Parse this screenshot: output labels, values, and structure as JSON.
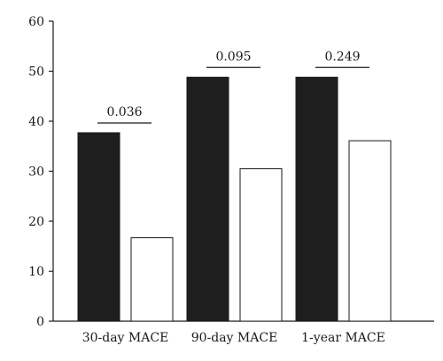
{
  "chart_data": {
    "type": "bar",
    "categories": [
      "30-day MACE",
      "90-day MACE",
      "1-year MACE"
    ],
    "series": [
      {
        "values": [
          37.7,
          48.8,
          48.8
        ],
        "color": "#1e1e1e"
      },
      {
        "values": [
          16.7,
          30.5,
          36.1
        ],
        "color": "#ffffff"
      }
    ],
    "annotations": [
      "0.036",
      "0.095",
      "0.249"
    ],
    "ylim": [
      0,
      60
    ],
    "yticks": [
      "0",
      "10",
      "20",
      "30",
      "40",
      "50",
      "60"
    ],
    "title": "",
    "xlabel": "",
    "ylabel": "",
    "grid": false,
    "legend": "none"
  }
}
